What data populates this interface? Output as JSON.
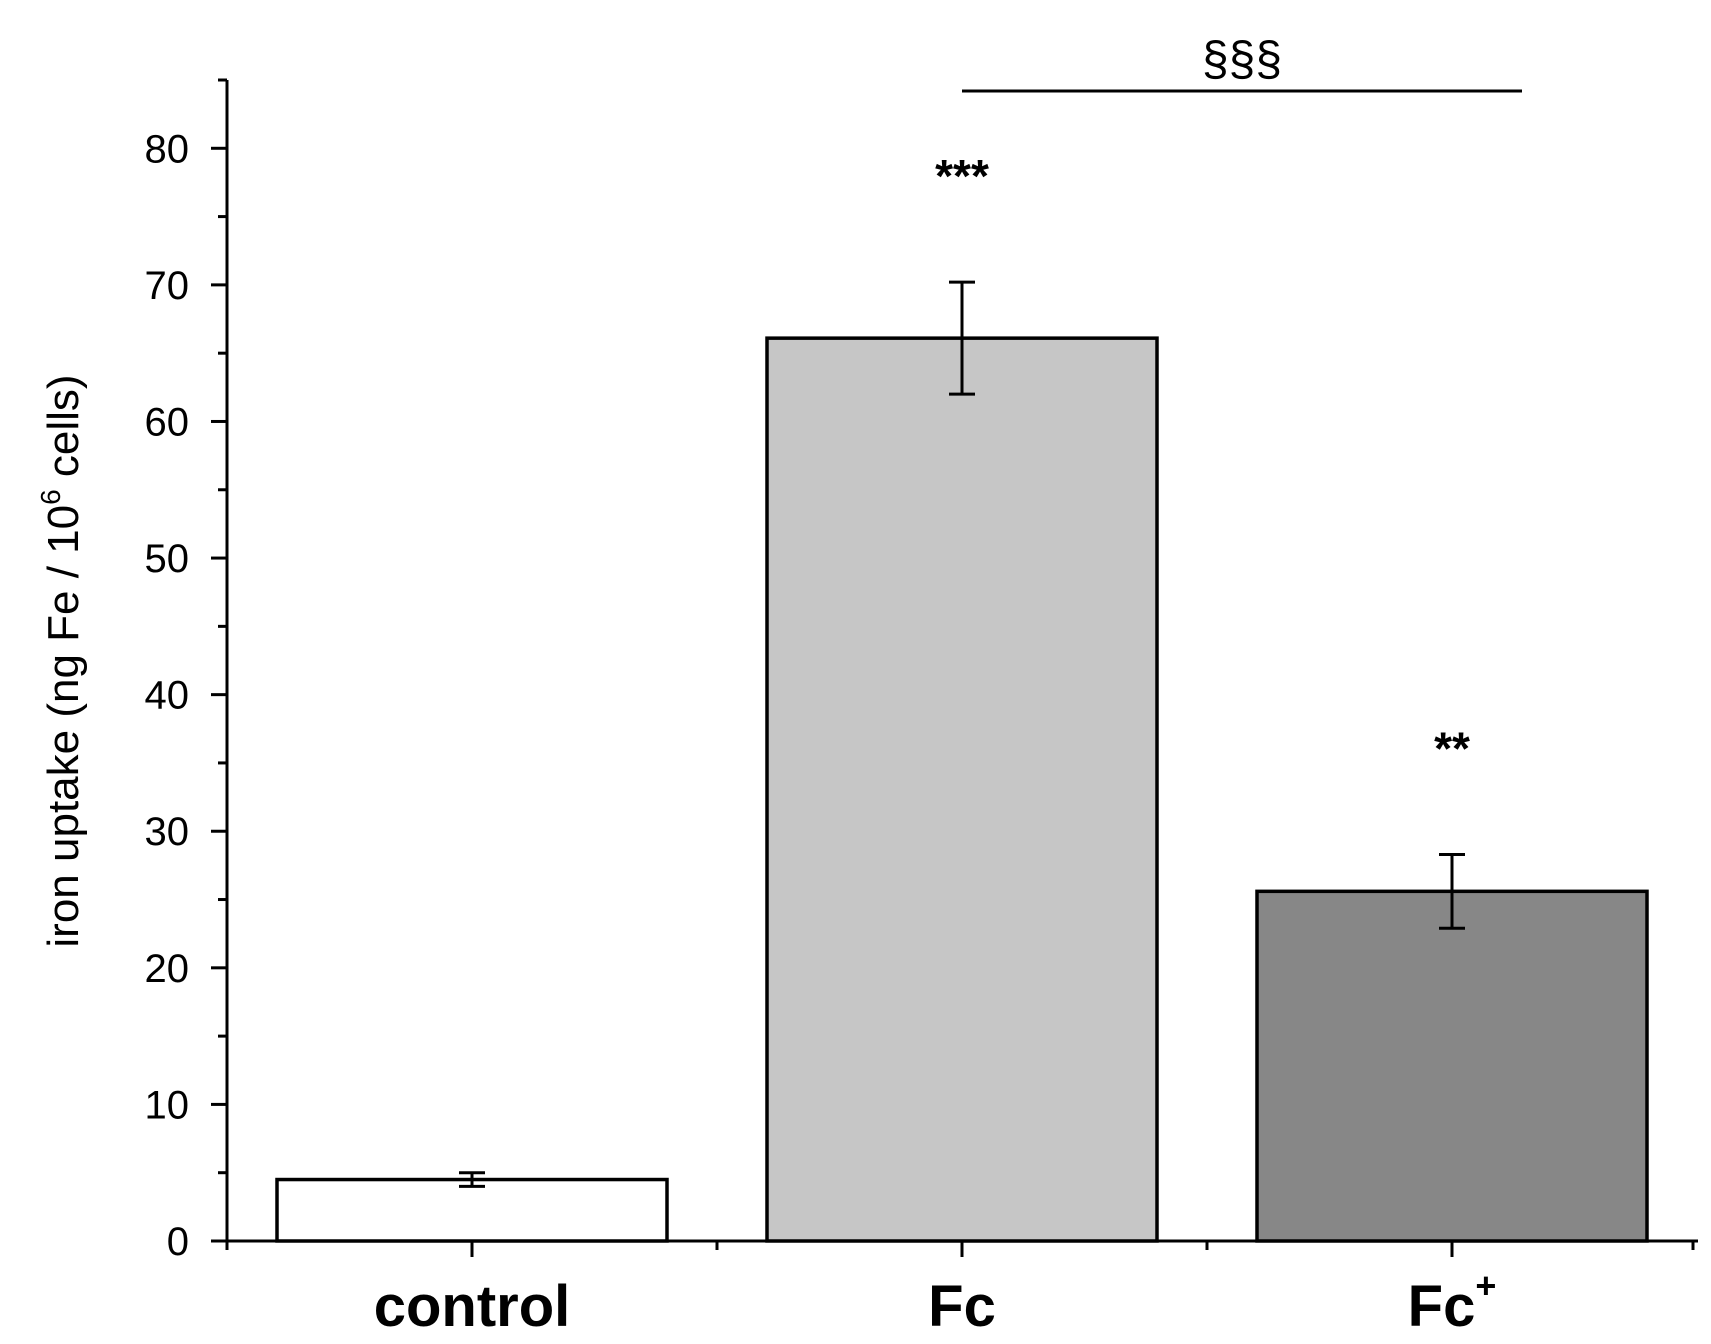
{
  "chart_data": {
    "type": "bar",
    "title": "",
    "xlabel": "",
    "ylabel": {
      "prefix": "iron uptake (ng Fe / 10",
      "superscript": "6",
      "suffix": " cells)"
    },
    "ylim": [
      0,
      85
    ],
    "yticks": [
      "0",
      "10",
      "20",
      "30",
      "40",
      "50",
      "60",
      "70",
      "80"
    ],
    "categories": [
      {
        "label": "control",
        "superscript": ""
      },
      {
        "label": "Fc",
        "superscript": ""
      },
      {
        "label": "Fc",
        "superscript": "+"
      }
    ],
    "values": [
      4.5,
      66.1,
      25.6
    ],
    "errors": [
      0.5,
      4.1,
      2.7
    ],
    "colors": [
      "#ffffff",
      "#c6c6c6",
      "#878787"
    ],
    "significance_marks": [
      "",
      "***",
      "**"
    ],
    "bracket": {
      "from": 1,
      "to": 2,
      "label": "§§§"
    }
  }
}
